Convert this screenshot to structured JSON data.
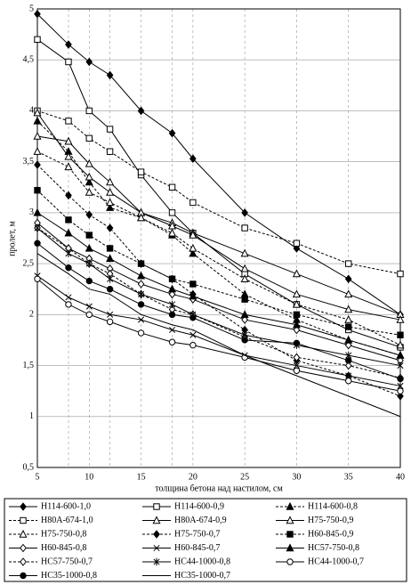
{
  "chart_data": {
    "type": "line",
    "x_label": "толщина бетона над настилом, см",
    "y_label": "пролет, м",
    "x": [
      5,
      8,
      10,
      12,
      15,
      18,
      20,
      25,
      30,
      35,
      40
    ],
    "xlim": [
      5,
      40
    ],
    "xticks": [
      5,
      10,
      15,
      20,
      25,
      30,
      35,
      40
    ],
    "ylim": [
      0.5,
      5
    ],
    "yticks": [
      {
        "value": 0.5,
        "label": "0,5"
      },
      1,
      {
        "value": 1.5,
        "label": "1,5"
      },
      2,
      {
        "value": 2.5,
        "label": "2,5"
      },
      3,
      {
        "value": 3.5,
        "label": "3,5"
      },
      4,
      {
        "value": 4.5,
        "label": "4,5"
      },
      5
    ],
    "grid": true,
    "series": [
      {
        "name": "Н114-600-1,0",
        "color": "#000",
        "dash": false,
        "marker": "diamond",
        "filled": true,
        "values": [
          4.95,
          4.65,
          4.48,
          4.35,
          4.0,
          3.78,
          3.53,
          3.0,
          2.65,
          2.35,
          2.0
        ]
      },
      {
        "name": "Н114-600-0,9",
        "color": "#000",
        "dash": false,
        "marker": "square",
        "filled": false,
        "values": [
          4.7,
          4.48,
          4.0,
          3.82,
          3.37,
          3.0,
          2.8,
          2.4,
          2.1,
          1.85,
          1.68
        ]
      },
      {
        "name": "Н114-600-0,8",
        "color": "#000",
        "dash": true,
        "marker": "triangle",
        "filled": true,
        "values": [
          3.9,
          3.6,
          3.3,
          3.05,
          2.95,
          2.78,
          2.6,
          2.2,
          1.95,
          1.75,
          1.6
        ]
      },
      {
        "name": "Н80А-674-1,0",
        "color": "#000",
        "dash": true,
        "marker": "square",
        "filled": false,
        "values": [
          4.0,
          3.9,
          3.73,
          3.6,
          3.4,
          3.25,
          3.1,
          2.85,
          2.7,
          2.5,
          2.4
        ]
      },
      {
        "name": "Н80А-674-0,9",
        "color": "#000",
        "dash": false,
        "marker": "triangle",
        "filled": false,
        "values": [
          3.75,
          3.7,
          3.48,
          3.3,
          3.0,
          2.9,
          2.8,
          2.6,
          2.4,
          2.2,
          2.0
        ]
      },
      {
        "name": "Н75-750-0,9",
        "color": "#000",
        "dash": false,
        "marker": "triangle",
        "filled": false,
        "values": [
          3.98,
          3.55,
          3.35,
          3.2,
          3.0,
          2.87,
          2.78,
          2.45,
          2.2,
          2.05,
          1.95
        ]
      },
      {
        "name": "Н75-750-0,8",
        "color": "#000",
        "dash": true,
        "marker": "triangle",
        "filled": false,
        "values": [
          3.6,
          3.45,
          3.2,
          3.1,
          2.95,
          2.8,
          2.65,
          2.35,
          2.1,
          1.95,
          1.7
        ]
      },
      {
        "name": "Н75-750-0,7",
        "color": "#000",
        "dash": true,
        "marker": "diamond",
        "filled": true,
        "values": [
          3.47,
          3.17,
          2.98,
          2.85,
          2.5,
          2.35,
          2.2,
          1.85,
          1.55,
          1.4,
          1.2
        ]
      },
      {
        "name": "Н60-845-0,9",
        "color": "#000",
        "dash": true,
        "marker": "square",
        "filled": true,
        "values": [
          3.22,
          2.93,
          2.78,
          2.65,
          2.5,
          2.35,
          2.3,
          2.15,
          2.0,
          1.88,
          1.8
        ]
      },
      {
        "name": "Н60-845-0,8",
        "color": "#000",
        "dash": false,
        "marker": "diamond",
        "filled": false,
        "values": [
          2.9,
          2.65,
          2.55,
          2.45,
          2.3,
          2.2,
          2.15,
          1.95,
          1.85,
          1.7,
          1.55
        ]
      },
      {
        "name": "Н60-845-0,7",
        "color": "#000",
        "dash": false,
        "marker": "x",
        "filled": false,
        "values": [
          2.38,
          2.17,
          2.08,
          2.0,
          1.95,
          1.85,
          1.8,
          1.6,
          1.5,
          1.4,
          1.3
        ]
      },
      {
        "name": "НС57-750-0,8",
        "color": "#000",
        "dash": false,
        "marker": "triangle",
        "filled": true,
        "values": [
          3.0,
          2.8,
          2.65,
          2.55,
          2.38,
          2.25,
          2.18,
          2.0,
          1.9,
          1.75,
          1.6
        ]
      },
      {
        "name": "НС57-750-0,7",
        "color": "#000",
        "dash": true,
        "marker": "diamond",
        "filled": false,
        "values": [
          2.85,
          2.65,
          2.5,
          2.4,
          2.2,
          2.05,
          2.0,
          1.78,
          1.58,
          1.5,
          1.38
        ]
      },
      {
        "name": "НС44-1000-0,8",
        "color": "#000",
        "dash": false,
        "marker": "asterisk",
        "filled": false,
        "values": [
          2.85,
          2.6,
          2.5,
          2.35,
          2.2,
          2.1,
          2.0,
          1.8,
          1.7,
          1.6,
          1.5
        ]
      },
      {
        "name": "НС44-1000-0,7",
        "color": "#000",
        "dash": false,
        "marker": "circle",
        "filled": false,
        "values": [
          2.35,
          2.1,
          2.0,
          1.93,
          1.82,
          1.73,
          1.7,
          1.58,
          1.45,
          1.35,
          1.25
        ]
      },
      {
        "name": "НС35-1000-0,8",
        "color": "#000",
        "dash": false,
        "marker": "circle",
        "filled": true,
        "values": [
          2.7,
          2.46,
          2.33,
          2.25,
          2.1,
          2.0,
          1.97,
          1.75,
          1.72,
          1.55,
          1.37
        ]
      },
      {
        "name": "НС35-1000-0,7",
        "color": "#000",
        "dash": false,
        "marker": "none",
        "filled": false,
        "values": [
          2.6,
          2.4,
          2.25,
          2.2,
          2.0,
          1.9,
          1.85,
          1.6,
          1.4,
          1.2,
          1.0
        ]
      }
    ]
  }
}
